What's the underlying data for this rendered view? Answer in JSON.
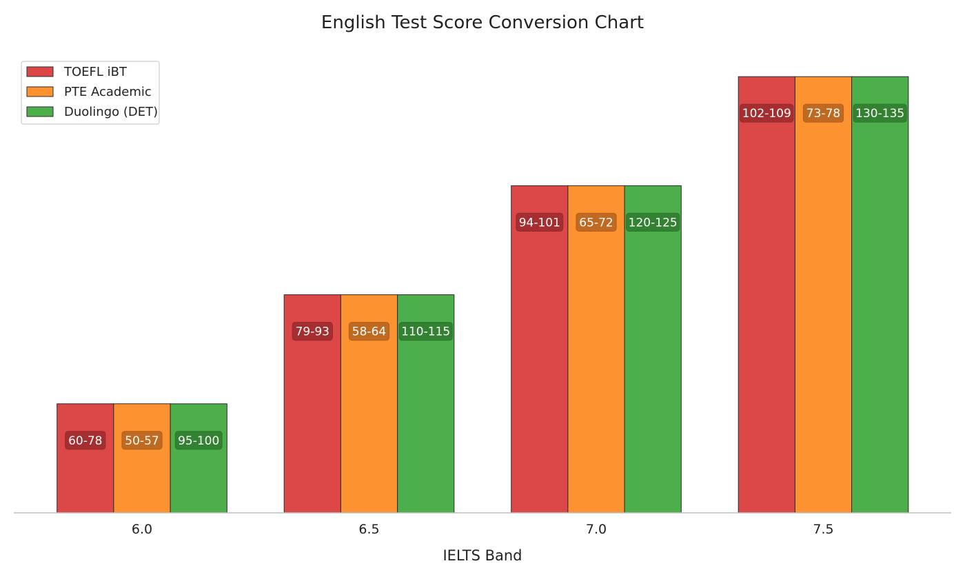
{
  "chart_data": {
    "type": "bar",
    "title": "English Test Score Conversion Chart",
    "xlabel": "IELTS Band",
    "ylabel": "",
    "categories": [
      "6.0",
      "6.5",
      "7.0",
      "7.5"
    ],
    "grid": false,
    "legend_position": "top-left",
    "series": [
      {
        "name": "TOEFL iBT",
        "color": "#dc4848",
        "label_bg": "#9b2a2e",
        "values": [
          1,
          2,
          3,
          4
        ],
        "labels": [
          "60-78",
          "79-93",
          "94-101",
          "102-109"
        ]
      },
      {
        "name": "PTE Academic",
        "color": "#fd9231",
        "label_bg": "#b5621e",
        "values": [
          1,
          2,
          3,
          4
        ],
        "labels": [
          "50-57",
          "58-64",
          "65-72",
          "73-78"
        ]
      },
      {
        "name": "Duolingo (DET)",
        "color": "#4caf4c",
        "label_bg": "#2e7a2e",
        "values": [
          1,
          2,
          3,
          4
        ],
        "labels": [
          "95-100",
          "110-115",
          "120-125",
          "130-135"
        ]
      }
    ]
  }
}
